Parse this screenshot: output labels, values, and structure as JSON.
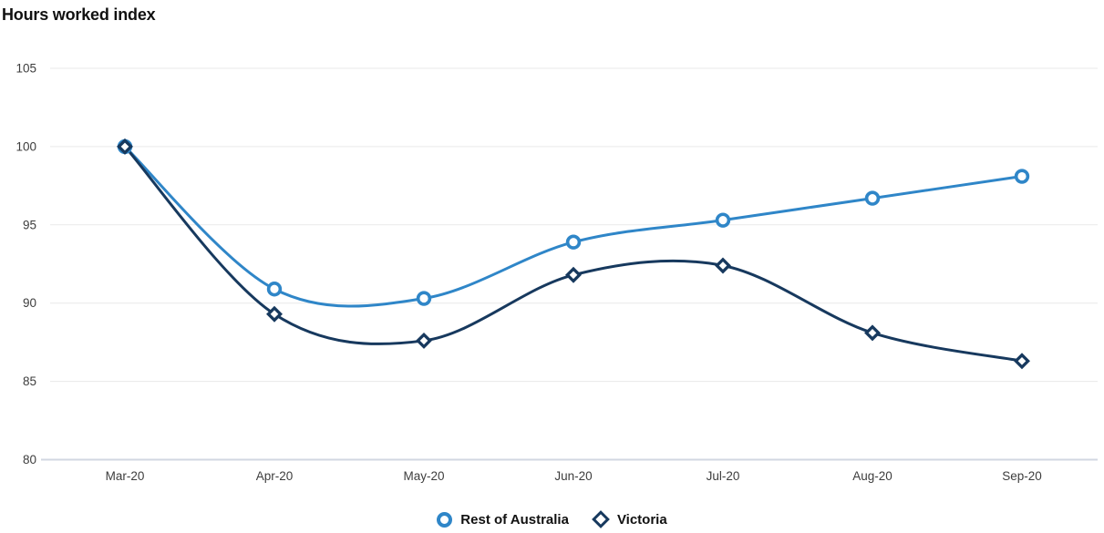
{
  "title": "Hours worked index",
  "colors": {
    "rest_of_australia": "#2F86C8",
    "victoria": "#17395E",
    "gridline": "#E9E9E9",
    "baseline": "#D2D7E2",
    "tick_label": "#3D3D3D",
    "title_text": "#111111",
    "legend_text": "#111111",
    "background": "#FFFFFF"
  },
  "chart_data": {
    "type": "line",
    "title": "Hours worked index",
    "xlabel": "",
    "ylabel": "",
    "x": [
      "Mar-20",
      "Apr-20",
      "May-20",
      "Jun-20",
      "Jul-20",
      "Aug-20",
      "Sep-20"
    ],
    "series": [
      {
        "name": "Rest of Australia",
        "marker": "circle",
        "color": "#2F86C8",
        "values": [
          100,
          90.9,
          90.3,
          93.9,
          95.3,
          96.7,
          98.1
        ]
      },
      {
        "name": "Victoria",
        "marker": "diamond",
        "color": "#17395E",
        "values": [
          100,
          89.3,
          87.6,
          91.8,
          92.4,
          88.1,
          86.3
        ]
      }
    ],
    "yticks": [
      80,
      85,
      90,
      95,
      100,
      105
    ],
    "ylim": [
      80,
      105
    ],
    "grid": true,
    "curve": "smooth",
    "legend_position": "bottom"
  },
  "legend": {
    "items": [
      {
        "label": "Rest of Australia"
      },
      {
        "label": "Victoria"
      }
    ]
  }
}
